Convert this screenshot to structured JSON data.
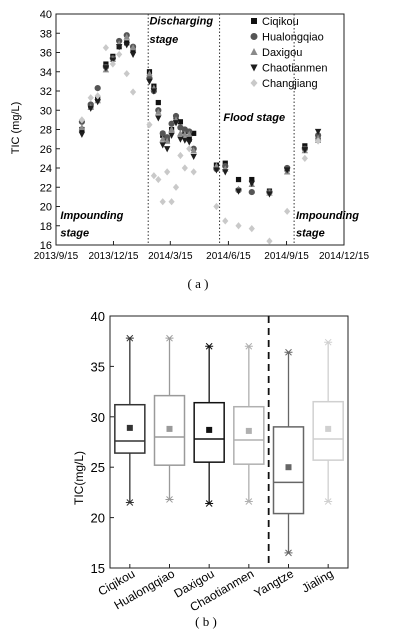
{
  "chart_data": [
    {
      "type": "scatter",
      "title": "",
      "caption": "( a )",
      "ylabel": "TIC (mg/L)",
      "xlabel": "",
      "ylim": [
        16,
        40
      ],
      "yticks": [
        16,
        18,
        20,
        22,
        24,
        26,
        28,
        30,
        32,
        34,
        36,
        38,
        40
      ],
      "xlim": [
        "2013-09-15",
        "2014-12-15"
      ],
      "xticks": [
        "2013/9/15",
        "2013/12/15",
        "2014/3/15",
        "2014/6/15",
        "2014/9/15",
        "2014/12/15"
      ],
      "legend_position": "top-right",
      "stage_dividers": [
        "2014-02-08",
        "2014-06-01",
        "2014-09-27"
      ],
      "annotations": [
        {
          "text": "Discharging",
          "x": "2014-02-10",
          "y": 38.9
        },
        {
          "text": "stage",
          "x": "2014-02-10",
          "y": 37.0
        },
        {
          "text": "Flood stage",
          "x": "2014-06-07",
          "y": 28.9
        },
        {
          "text": "Impounding",
          "x": "2013-09-22",
          "y": 18.7
        },
        {
          "text": "stage",
          "x": "2013-09-22",
          "y": 16.9
        },
        {
          "text": "Impounding",
          "x": "2014-09-30",
          "y": 18.7
        },
        {
          "text": "stage",
          "x": "2014-09-30",
          "y": 16.9
        }
      ],
      "series": [
        {
          "name": "Ciqikou",
          "marker": "square",
          "color": "#111111",
          "points": [
            [
              "2013-10-26",
              28.0
            ],
            [
              "2013-11-09",
              30.3
            ],
            [
              "2013-11-20",
              31.2
            ],
            [
              "2013-12-03",
              34.8
            ],
            [
              "2013-12-14",
              35.6
            ],
            [
              "2013-12-24",
              36.6
            ],
            [
              "2014-01-05",
              37.0
            ],
            [
              "2014-01-15",
              36.3
            ],
            [
              "2014-02-10",
              34.0
            ],
            [
              "2014-02-17",
              32.5
            ],
            [
              "2014-02-24",
              30.8
            ],
            [
              "2014-03-03",
              27.4
            ],
            [
              "2014-03-10",
              26.8
            ],
            [
              "2014-03-17",
              28.0
            ],
            [
              "2014-03-24",
              29.3
            ],
            [
              "2014-03-31",
              28.8
            ],
            [
              "2014-04-07",
              27.8
            ],
            [
              "2014-04-14",
              27.0
            ],
            [
              "2014-04-21",
              27.6
            ],
            [
              "2014-05-27",
              24.3
            ],
            [
              "2014-06-10",
              24.5
            ],
            [
              "2014-07-01",
              22.8
            ],
            [
              "2014-07-22",
              22.8
            ],
            [
              "2014-08-19",
              21.6
            ],
            [
              "2014-09-16",
              23.9
            ],
            [
              "2014-10-14",
              26.3
            ],
            [
              "2014-11-04",
              26.9
            ]
          ]
        },
        {
          "name": "Hualongqiao",
          "marker": "circle",
          "color": "#555555",
          "points": [
            [
              "2013-10-26",
              28.8
            ],
            [
              "2013-11-09",
              30.6
            ],
            [
              "2013-11-20",
              32.3
            ],
            [
              "2013-12-03",
              34.5
            ],
            [
              "2013-12-14",
              35.4
            ],
            [
              "2013-12-24",
              37.2
            ],
            [
              "2014-01-05",
              37.8
            ],
            [
              "2014-01-15",
              36.6
            ],
            [
              "2014-02-10",
              33.3
            ],
            [
              "2014-02-17",
              32.0
            ],
            [
              "2014-02-24",
              30.0
            ],
            [
              "2014-03-03",
              27.6
            ],
            [
              "2014-03-10",
              27.2
            ],
            [
              "2014-03-17",
              28.6
            ],
            [
              "2014-03-24",
              29.4
            ],
            [
              "2014-03-31",
              28.2
            ],
            [
              "2014-04-07",
              28.0
            ],
            [
              "2014-04-14",
              27.8
            ],
            [
              "2014-04-21",
              26.0
            ],
            [
              "2014-05-27",
              23.9
            ],
            [
              "2014-06-10",
              24.2
            ],
            [
              "2014-07-01",
              21.7
            ],
            [
              "2014-07-22",
              21.5
            ],
            [
              "2014-08-19",
              21.5
            ],
            [
              "2014-09-16",
              24.0
            ],
            [
              "2014-10-14",
              26.0
            ],
            [
              "2014-11-04",
              27.4
            ]
          ]
        },
        {
          "name": "Daxigou",
          "marker": "triangle-up",
          "color": "#8a8a8a",
          "points": [
            [
              "2013-10-26",
              28.2
            ],
            [
              "2013-11-09",
              30.3
            ],
            [
              "2013-11-20",
              31.0
            ],
            [
              "2013-12-03",
              34.2
            ],
            [
              "2013-12-14",
              35.3
            ],
            [
              "2013-12-24",
              36.9
            ],
            [
              "2014-01-05",
              37.6
            ],
            [
              "2014-01-15",
              36.5
            ],
            [
              "2014-02-10",
              33.8
            ],
            [
              "2014-02-17",
              32.3
            ],
            [
              "2014-02-24",
              29.8
            ],
            [
              "2014-03-03",
              27.0
            ],
            [
              "2014-03-10",
              26.8
            ],
            [
              "2014-03-17",
              28.0
            ],
            [
              "2014-03-24",
              29.0
            ],
            [
              "2014-03-31",
              27.6
            ],
            [
              "2014-04-07",
              27.5
            ],
            [
              "2014-04-14",
              27.5
            ],
            [
              "2014-04-21",
              25.8
            ],
            [
              "2014-05-27",
              24.2
            ],
            [
              "2014-06-10",
              23.9
            ],
            [
              "2014-07-01",
              21.8
            ],
            [
              "2014-07-22",
              22.3
            ],
            [
              "2014-08-19",
              21.4
            ],
            [
              "2014-09-16",
              23.6
            ],
            [
              "2014-10-14",
              25.8
            ],
            [
              "2014-11-04",
              27.1
            ]
          ]
        },
        {
          "name": "Chaotianmen",
          "marker": "triangle-down",
          "color": "#1e1e1e",
          "points": [
            [
              "2013-10-26",
              27.5
            ],
            [
              "2013-11-09",
              30.2
            ],
            [
              "2013-11-20",
              30.9
            ],
            [
              "2013-12-03",
              34.4
            ],
            [
              "2013-12-14",
              35.2
            ],
            [
              "2013-12-24",
              36.6
            ],
            [
              "2014-01-05",
              36.8
            ],
            [
              "2014-01-15",
              35.8
            ],
            [
              "2014-02-10",
              33.0
            ],
            [
              "2014-02-17",
              32.0
            ],
            [
              "2014-02-24",
              29.2
            ],
            [
              "2014-03-03",
              26.4
            ],
            [
              "2014-03-10",
              26.0
            ],
            [
              "2014-03-17",
              27.4
            ],
            [
              "2014-03-24",
              28.7
            ],
            [
              "2014-03-31",
              27.0
            ],
            [
              "2014-04-07",
              26.9
            ],
            [
              "2014-04-14",
              26.7
            ],
            [
              "2014-04-21",
              25.2
            ],
            [
              "2014-05-27",
              23.8
            ],
            [
              "2014-06-10",
              23.6
            ],
            [
              "2014-07-01",
              21.6
            ],
            [
              "2014-07-22",
              22.4
            ],
            [
              "2014-08-19",
              21.3
            ],
            [
              "2014-09-16",
              23.8
            ],
            [
              "2014-10-14",
              25.9
            ],
            [
              "2014-11-04",
              27.8
            ]
          ]
        },
        {
          "name": "Changjiang",
          "marker": "diamond",
          "color": "#c9c9c9",
          "points": [
            [
              "2013-10-26",
              29.0
            ],
            [
              "2013-11-09",
              31.3
            ],
            [
              "2013-11-20",
              31.5
            ],
            [
              "2013-12-03",
              36.5
            ],
            [
              "2013-12-14",
              34.8
            ],
            [
              "2013-12-24",
              35.8
            ],
            [
              "2014-01-05",
              33.8
            ],
            [
              "2014-01-15",
              31.9
            ],
            [
              "2014-02-10",
              28.5
            ],
            [
              "2014-02-17",
              23.2
            ],
            [
              "2014-02-24",
              22.8
            ],
            [
              "2014-03-03",
              20.5
            ],
            [
              "2014-03-10",
              23.6
            ],
            [
              "2014-03-17",
              20.5
            ],
            [
              "2014-03-24",
              22.0
            ],
            [
              "2014-03-31",
              25.3
            ],
            [
              "2014-04-07",
              24.0
            ],
            [
              "2014-04-14",
              26.0
            ],
            [
              "2014-04-21",
              23.6
            ],
            [
              "2014-05-27",
              20.0
            ],
            [
              "2014-06-10",
              18.5
            ],
            [
              "2014-07-01",
              18.0
            ],
            [
              "2014-07-22",
              17.7
            ],
            [
              "2014-08-19",
              16.4
            ],
            [
              "2014-09-16",
              19.5
            ],
            [
              "2014-10-14",
              25.0
            ],
            [
              "2014-11-04",
              26.8
            ]
          ]
        }
      ]
    },
    {
      "type": "box",
      "title": "",
      "caption": "( b )",
      "ylabel": "TIC(mg/L)",
      "xlabel": "",
      "ylim": [
        15,
        40
      ],
      "yticks": [
        15,
        20,
        25,
        30,
        35,
        40
      ],
      "categories": [
        "Ciqikou",
        "Hualongqiao",
        "Daxigou",
        "Chaotianmen",
        "Yangtze",
        "Jialing"
      ],
      "divider_after_index": 3,
      "boxes": [
        {
          "name": "Ciqikou",
          "color": "#333333",
          "min": 21.5,
          "q1": 26.4,
          "median": 27.6,
          "q3": 31.2,
          "max": 37.8,
          "mean": 28.9
        },
        {
          "name": "Hualongqiao",
          "color": "#9a9a9a",
          "min": 21.8,
          "q1": 25.2,
          "median": 28.0,
          "q3": 32.1,
          "max": 37.8,
          "mean": 28.8
        },
        {
          "name": "Daxigou",
          "color": "#111111",
          "min": 21.4,
          "q1": 25.5,
          "median": 27.8,
          "q3": 31.4,
          "max": 37.0,
          "mean": 28.7
        },
        {
          "name": "Chaotianmen",
          "color": "#b0b0b0",
          "min": 21.6,
          "q1": 25.3,
          "median": 27.7,
          "q3": 31.0,
          "max": 37.0,
          "mean": 28.6
        },
        {
          "name": "Yangtze",
          "color": "#666666",
          "min": 16.5,
          "q1": 20.4,
          "median": 23.5,
          "q3": 29.0,
          "max": 36.4,
          "mean": 25.0
        },
        {
          "name": "Jialing",
          "color": "#d0d0d0",
          "min": 21.6,
          "q1": 25.7,
          "median": 27.8,
          "q3": 31.5,
          "max": 37.4,
          "mean": 28.8
        }
      ]
    }
  ]
}
